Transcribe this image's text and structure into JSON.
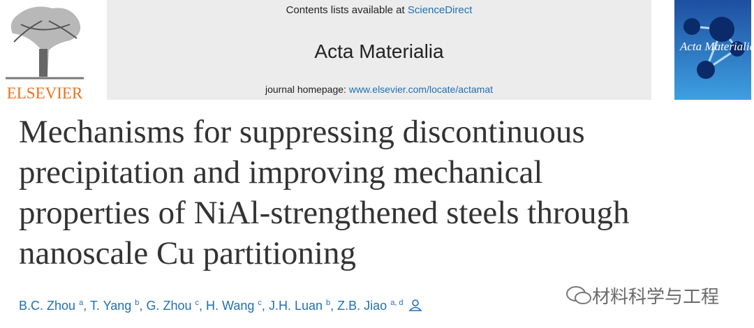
{
  "header": {
    "publisher": "ELSEVIER",
    "contents_prefix": "Contents lists available at",
    "contents_link": "ScienceDirect",
    "journal": "Acta Materialia",
    "homepage_label": "journal homepage:",
    "homepage_url": "www.elsevier.com/locate/actamat"
  },
  "cover": {
    "title": "Acta Materialia"
  },
  "article": {
    "title_lines": [
      "Mechanisms for suppressing discontinuous",
      "precipitation and improving mechanical",
      "properties of NiAl-strengthened steels through",
      "nanoscale Cu partitioning"
    ],
    "author_separator": ",",
    "authors": [
      {
        "name": "B.C. Zhou",
        "affiliations": "a"
      },
      {
        "name": "T. Yang",
        "affiliations": "b"
      },
      {
        "name": "G. Zhou",
        "affiliations": "c"
      },
      {
        "name": "H. Wang",
        "affiliations": "c"
      },
      {
        "name": "J.H. Luan",
        "affiliations": "b"
      },
      {
        "name": "Z.B. Jiao",
        "affiliations": "a, d"
      }
    ]
  },
  "watermark": "材料科学与工程"
}
